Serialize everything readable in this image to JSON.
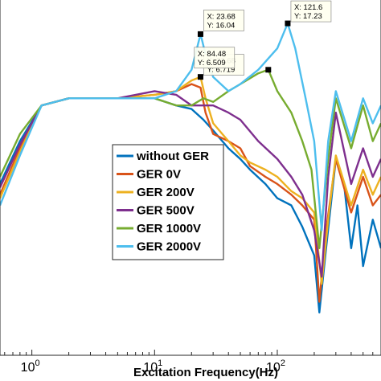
{
  "chart_data": {
    "type": "line",
    "xlabel": "Excitation Frequency(Hz)",
    "xscale": "log",
    "xlim": [
      0.55,
      700
    ],
    "ylim": [
      0,
      1
    ],
    "grid": false,
    "legend_position": "lower-center",
    "x_ticks": [
      {
        "base": "10",
        "exp": "0",
        "value": 1
      },
      {
        "base": "10",
        "exp": "1",
        "value": 10
      },
      {
        "base": "10",
        "exp": "2",
        "value": 100
      }
    ],
    "series": [
      {
        "name": "without GER",
        "color": "#0072BD",
        "points": [
          [
            0.55,
            0.48
          ],
          [
            0.8,
            0.6
          ],
          [
            1.2,
            0.7
          ],
          [
            2,
            0.72
          ],
          [
            5,
            0.72
          ],
          [
            10,
            0.72
          ],
          [
            15,
            0.7
          ],
          [
            20,
            0.69
          ],
          [
            25,
            0.66
          ],
          [
            30,
            0.63
          ],
          [
            40,
            0.58
          ],
          [
            50,
            0.55
          ],
          [
            60,
            0.52
          ],
          [
            80,
            0.48
          ],
          [
            100,
            0.44
          ],
          [
            130,
            0.42
          ],
          [
            160,
            0.36
          ],
          [
            200,
            0.28
          ],
          [
            220,
            0.12
          ],
          [
            250,
            0.3
          ],
          [
            300,
            0.55
          ],
          [
            350,
            0.48
          ],
          [
            400,
            0.3
          ],
          [
            450,
            0.42
          ],
          [
            500,
            0.25
          ],
          [
            600,
            0.38
          ],
          [
            700,
            0.3
          ]
        ]
      },
      {
        "name": "GER 0V",
        "color": "#D95319",
        "points": [
          [
            0.55,
            0.45
          ],
          [
            0.8,
            0.58
          ],
          [
            1.2,
            0.7
          ],
          [
            2,
            0.72
          ],
          [
            5,
            0.72
          ],
          [
            10,
            0.73
          ],
          [
            15,
            0.74
          ],
          [
            20,
            0.76
          ],
          [
            23.68,
            0.75
          ],
          [
            26,
            0.68
          ],
          [
            30,
            0.62
          ],
          [
            40,
            0.6
          ],
          [
            50,
            0.58
          ],
          [
            60,
            0.53
          ],
          [
            80,
            0.5
          ],
          [
            100,
            0.48
          ],
          [
            130,
            0.45
          ],
          [
            160,
            0.42
          ],
          [
            200,
            0.38
          ],
          [
            220,
            0.15
          ],
          [
            250,
            0.35
          ],
          [
            300,
            0.55
          ],
          [
            400,
            0.4
          ],
          [
            500,
            0.5
          ],
          [
            600,
            0.42
          ],
          [
            700,
            0.45
          ]
        ]
      },
      {
        "name": "GER 200V",
        "color": "#EDB120",
        "points": [
          [
            0.55,
            0.44
          ],
          [
            0.8,
            0.57
          ],
          [
            1.2,
            0.7
          ],
          [
            2,
            0.72
          ],
          [
            5,
            0.72
          ],
          [
            10,
            0.73
          ],
          [
            15,
            0.74
          ],
          [
            20,
            0.77
          ],
          [
            23.68,
            0.78
          ],
          [
            26,
            0.72
          ],
          [
            30,
            0.65
          ],
          [
            40,
            0.6
          ],
          [
            50,
            0.56
          ],
          [
            60,
            0.54
          ],
          [
            80,
            0.52
          ],
          [
            100,
            0.5
          ],
          [
            130,
            0.46
          ],
          [
            160,
            0.44
          ],
          [
            200,
            0.4
          ],
          [
            230,
            0.2
          ],
          [
            260,
            0.38
          ],
          [
            300,
            0.56
          ],
          [
            400,
            0.42
          ],
          [
            500,
            0.52
          ],
          [
            600,
            0.45
          ],
          [
            700,
            0.5
          ]
        ]
      },
      {
        "name": "GER 500V",
        "color": "#7E2F8E",
        "points": [
          [
            0.55,
            0.47
          ],
          [
            0.8,
            0.59
          ],
          [
            1.2,
            0.7
          ],
          [
            2,
            0.72
          ],
          [
            5,
            0.72
          ],
          [
            10,
            0.74
          ],
          [
            15,
            0.73
          ],
          [
            20,
            0.7
          ],
          [
            30,
            0.7
          ],
          [
            40,
            0.68
          ],
          [
            50,
            0.66
          ],
          [
            70,
            0.6
          ],
          [
            100,
            0.55
          ],
          [
            130,
            0.5
          ],
          [
            160,
            0.45
          ],
          [
            200,
            0.35
          ],
          [
            230,
            0.22
          ],
          [
            260,
            0.5
          ],
          [
            300,
            0.68
          ],
          [
            400,
            0.48
          ],
          [
            500,
            0.58
          ],
          [
            600,
            0.5
          ],
          [
            700,
            0.55
          ]
        ]
      },
      {
        "name": "GER 1000V",
        "color": "#77AC30",
        "points": [
          [
            0.55,
            0.5
          ],
          [
            0.8,
            0.62
          ],
          [
            1.2,
            0.7
          ],
          [
            2,
            0.72
          ],
          [
            5,
            0.72
          ],
          [
            10,
            0.72
          ],
          [
            15,
            0.7
          ],
          [
            20,
            0.7
          ],
          [
            25,
            0.72
          ],
          [
            30,
            0.71
          ],
          [
            40,
            0.74
          ],
          [
            50,
            0.76
          ],
          [
            70,
            0.79
          ],
          [
            84.48,
            0.8
          ],
          [
            100,
            0.74
          ],
          [
            130,
            0.68
          ],
          [
            160,
            0.6
          ],
          [
            190,
            0.52
          ],
          [
            220,
            0.3
          ],
          [
            260,
            0.55
          ],
          [
            300,
            0.72
          ],
          [
            400,
            0.58
          ],
          [
            500,
            0.7
          ],
          [
            600,
            0.6
          ],
          [
            700,
            0.65
          ]
        ]
      },
      {
        "name": "GER 2000V",
        "color": "#4DBEEE",
        "points": [
          [
            0.55,
            0.42
          ],
          [
            0.8,
            0.56
          ],
          [
            1.2,
            0.7
          ],
          [
            2,
            0.72
          ],
          [
            5,
            0.72
          ],
          [
            10,
            0.72
          ],
          [
            15,
            0.74
          ],
          [
            20,
            0.8
          ],
          [
            23.68,
            0.9
          ],
          [
            27,
            0.82
          ],
          [
            30,
            0.78
          ],
          [
            40,
            0.74
          ],
          [
            50,
            0.76
          ],
          [
            70,
            0.8
          ],
          [
            100,
            0.86
          ],
          [
            121.6,
            0.93
          ],
          [
            140,
            0.86
          ],
          [
            170,
            0.72
          ],
          [
            200,
            0.6
          ],
          [
            230,
            0.35
          ],
          [
            260,
            0.6
          ],
          [
            300,
            0.74
          ],
          [
            400,
            0.6
          ],
          [
            500,
            0.72
          ],
          [
            600,
            0.65
          ],
          [
            700,
            0.7
          ]
        ]
      }
    ],
    "annotations": [
      {
        "x": 23.68,
        "y": 0.9,
        "label_x": "X: 23.68",
        "label_y": "Y: 16.04"
      },
      {
        "x": 23.68,
        "y": 0.78,
        "label_x": "X: 23.68",
        "label_y": "Y: 6.719"
      },
      {
        "x": 84.48,
        "y": 0.8,
        "label_x": "X: 84.48",
        "label_y": "Y: 6.509"
      },
      {
        "x": 121.6,
        "y": 0.93,
        "label_x": "X: 121.6",
        "label_y": "Y: 17.23"
      }
    ]
  }
}
